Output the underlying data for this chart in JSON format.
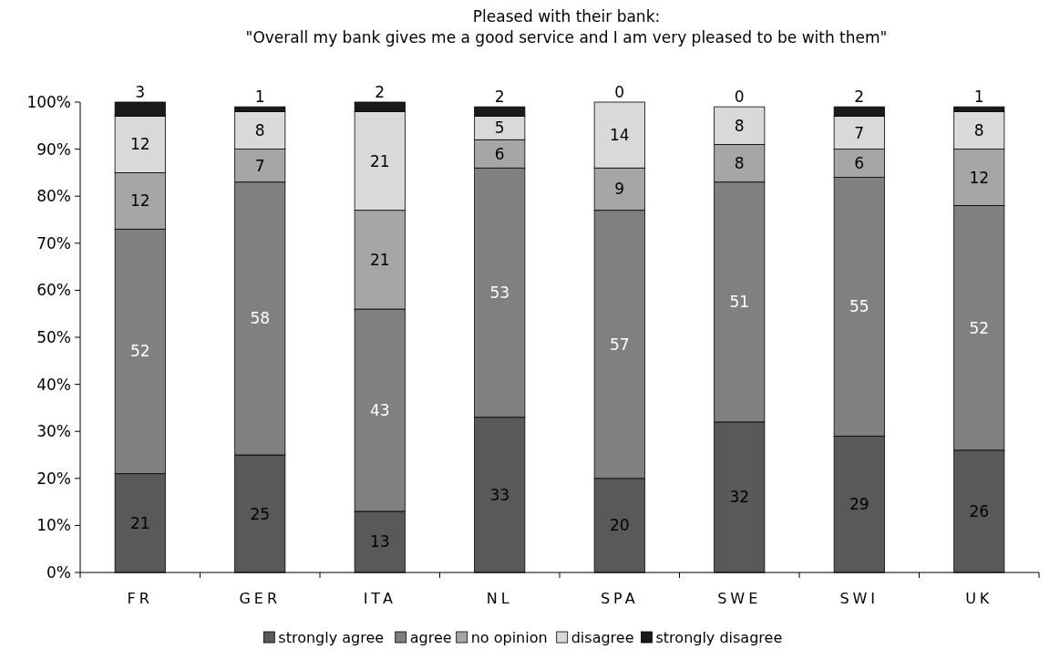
{
  "chart_data": {
    "type": "bar",
    "stacked": true,
    "title": "Pleased with their bank:",
    "subtitle": "\"Overall my bank gives me a good service and I am very pleased to be with them\"",
    "categories": [
      "FR",
      "GER",
      "ITA",
      "NL",
      "SPA",
      "SWE",
      "SWI",
      "UK"
    ],
    "series": [
      {
        "name": "strongly agree",
        "color": "#595959",
        "values": [
          21,
          25,
          13,
          33,
          20,
          32,
          29,
          26
        ]
      },
      {
        "name": "agree",
        "color": "#808080",
        "values": [
          52,
          58,
          43,
          53,
          57,
          51,
          55,
          52
        ]
      },
      {
        "name": "no opinion",
        "color": "#a6a6a6",
        "values": [
          12,
          7,
          21,
          6,
          9,
          8,
          6,
          12
        ]
      },
      {
        "name": "disagree",
        "color": "#d9d9d9",
        "values": [
          12,
          8,
          21,
          5,
          14,
          8,
          7,
          8
        ]
      },
      {
        "name": "strongly disagree",
        "color": "#1a1a1a",
        "values": [
          3,
          1,
          2,
          2,
          0,
          0,
          2,
          1
        ]
      }
    ],
    "ylim": [
      0,
      100
    ],
    "yticks": [
      {
        "value": 0,
        "label": "0%"
      },
      {
        "value": 10,
        "label": "10%"
      },
      {
        "value": 20,
        "label": "20%"
      },
      {
        "value": 30,
        "label": "30%"
      },
      {
        "value": 40,
        "label": "40%"
      },
      {
        "value": 50,
        "label": "50%"
      },
      {
        "value": 60,
        "label": "60%"
      },
      {
        "value": 70,
        "label": "70%"
      },
      {
        "value": 80,
        "label": "80%"
      },
      {
        "value": 90,
        "label": "90%"
      },
      {
        "value": 100,
        "label": "100%"
      }
    ],
    "data_labels": true,
    "legend": "bottom",
    "grid": false
  }
}
